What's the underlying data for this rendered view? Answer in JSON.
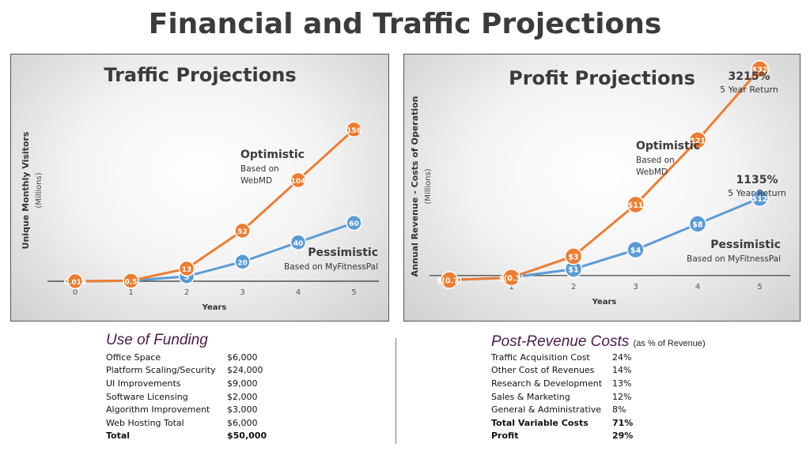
{
  "page_title": "Financial and Traffic Projections",
  "chart_data": [
    {
      "type": "line",
      "title": "Traffic Projections",
      "xlabel": "Years",
      "ylabel": "Unique Monthly Visitors",
      "ylabel_sub": "(Millions)",
      "x": [
        0,
        1,
        2,
        3,
        4,
        5
      ],
      "ylim": [
        0,
        160
      ],
      "series": [
        {
          "name": "Optimistic",
          "note": [
            "Based on",
            "WebMD"
          ],
          "color": "#ed7d31",
          "values": [
            0.012,
            0.5,
            13,
            52,
            104,
            156
          ],
          "point_labels": [
            "0.012",
            "0.5",
            "13",
            "52",
            "104",
            "156"
          ]
        },
        {
          "name": "Pessimistic",
          "note": [
            "Based on MyFitnessPal"
          ],
          "color": "#5b9bd5",
          "values": [
            0.003,
            0.5,
            5,
            20,
            40,
            60
          ],
          "point_labels": [
            "0.003",
            "0.5",
            "5",
            "20",
            "40",
            "60"
          ]
        }
      ],
      "annotations": []
    },
    {
      "type": "line",
      "title": "Profit Projections",
      "xlabel": "Years",
      "ylabel": "Annual Revenue - Costs of Operation",
      "ylabel_sub": "(Millions)",
      "x": [
        0,
        1,
        2,
        3,
        4,
        5
      ],
      "ylim": [
        -1,
        35
      ],
      "series": [
        {
          "name": "Optimistic",
          "note": [
            "Based on",
            "WebMD"
          ],
          "color": "#ed7d31",
          "values": [
            -0.7,
            -0.3,
            3,
            11,
            21,
            32
          ],
          "point_labels": [
            "$(0.7)",
            "$(0.3)",
            "$3",
            "$11",
            "$21",
            "$32"
          ]
        },
        {
          "name": "Pessimistic",
          "note": [
            "Based on MyFitnessPal"
          ],
          "color": "#5b9bd5",
          "values": [
            -0.7,
            -0.3,
            1,
            4,
            8,
            12
          ],
          "point_labels": [
            "",
            "",
            "$1",
            "$4",
            "$8",
            "$12"
          ]
        }
      ],
      "annotations": [
        {
          "big": "3215%",
          "small": "5 Year Return"
        },
        {
          "big": "1135%",
          "small": "5 Year Return"
        }
      ]
    }
  ],
  "funding": {
    "title": "Use of Funding",
    "rows": [
      {
        "label": "Office Space",
        "value": "$6,000"
      },
      {
        "label": "Platform Scaling/Security",
        "value": "$24,000"
      },
      {
        "label": "UI Improvements",
        "value": "$9,000"
      },
      {
        "label": "Software Licensing",
        "value": "$2,000"
      },
      {
        "label": "Algorithm Improvement",
        "value": "$3,000"
      },
      {
        "label": "Web Hosting Total",
        "value": "$6,000"
      }
    ],
    "total": {
      "label": "Total",
      "value": "$50,000"
    }
  },
  "costs": {
    "title": "Post-Revenue Costs",
    "subtitle": "(as % of Revenue)",
    "rows": [
      {
        "label": "Traffic Acquisition Cost",
        "value": "24%"
      },
      {
        "label": "Other Cost of Revenues",
        "value": "14%"
      },
      {
        "label": "Research & Development",
        "value": "13%"
      },
      {
        "label": "Sales & Marketing",
        "value": "12%"
      },
      {
        "label": "General & Administrative",
        "value": "8%"
      }
    ],
    "totals": [
      {
        "label": "Total Variable Costs",
        "value": "71%"
      },
      {
        "label": "Profit",
        "value": "29%"
      }
    ]
  }
}
